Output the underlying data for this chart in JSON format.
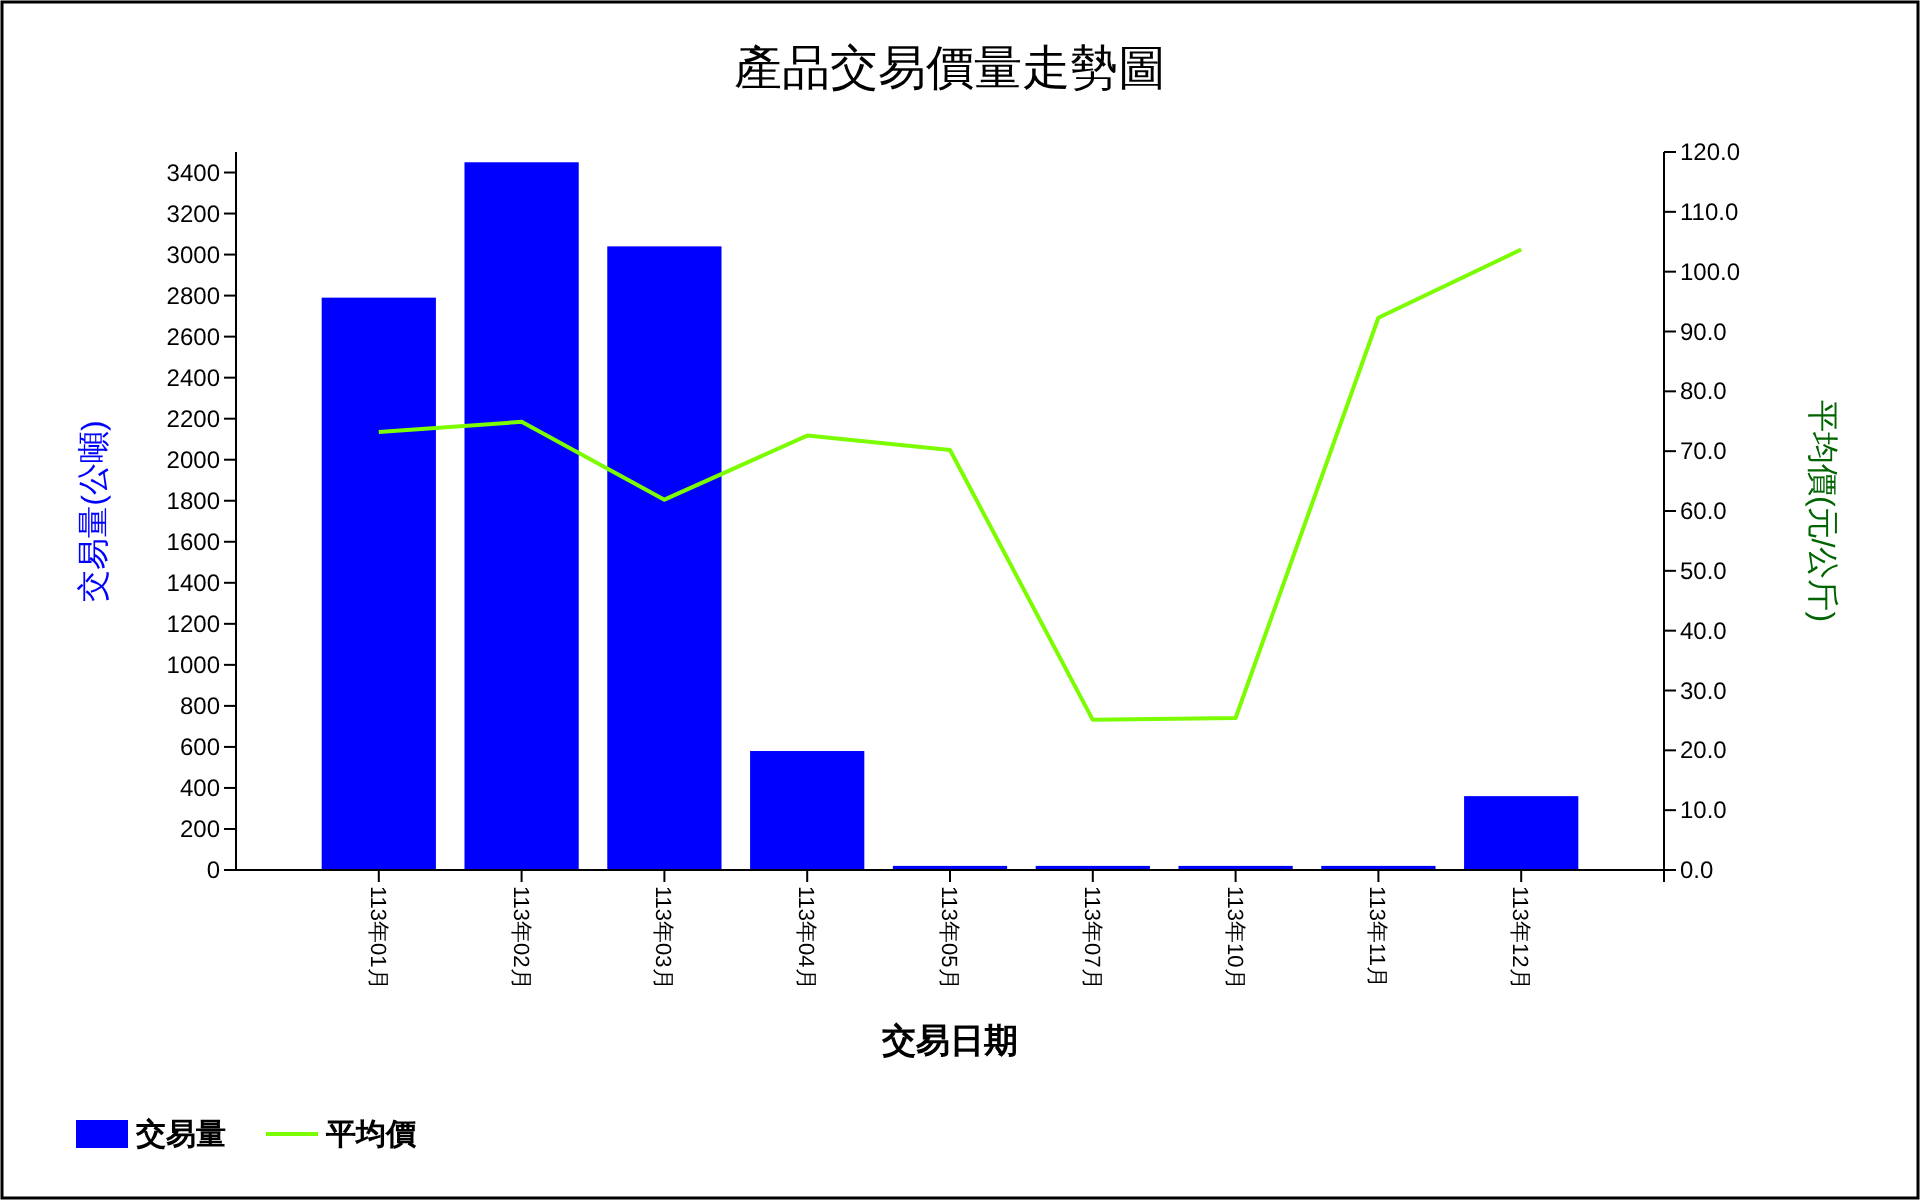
{
  "chart_data": {
    "type": "bar",
    "title": "產品交易價量走勢圖",
    "xlabel": "交易日期",
    "ylabel": "交易量(公噸)",
    "y2label": "平均價(元/公斤)",
    "categories": [
      "113年01月",
      "113年02月",
      "113年03月",
      "113年04月",
      "113年05月",
      "113年07月",
      "113年10月",
      "113年11月",
      "113年12月"
    ],
    "series": [
      {
        "name": "交易量",
        "color": "#0000ff",
        "values": [
          2790,
          3450,
          3040,
          580,
          20,
          20,
          20,
          20,
          360
        ]
      },
      {
        "name": "平均價",
        "type": "line",
        "axis": "y2",
        "color": "#7cfc00",
        "values": [
          73.2,
          74.9,
          61.9,
          72.6,
          70.2,
          25.1,
          25.4,
          92.3,
          103.7
        ]
      }
    ],
    "ylim": [
      0,
      3500
    ],
    "yticks": [
      0,
      200,
      400,
      600,
      800,
      1000,
      1200,
      1400,
      1600,
      1800,
      2000,
      2200,
      2400,
      2600,
      2800,
      3000,
      3200,
      3400
    ],
    "y2lim": [
      0,
      120
    ],
    "y2ticks": [
      {
        "value": 0,
        "label": "0.0"
      },
      {
        "value": 10,
        "label": "10.0"
      },
      {
        "value": 20,
        "label": "20.0"
      },
      {
        "value": 30,
        "label": "30.0"
      },
      {
        "value": 40,
        "label": "40.0"
      },
      {
        "value": 50,
        "label": "50.0"
      },
      {
        "value": 60,
        "label": "60.0"
      },
      {
        "value": 70,
        "label": "70.0"
      },
      {
        "value": 80,
        "label": "80.0"
      },
      {
        "value": 90,
        "label": "90.0"
      },
      {
        "value": 100,
        "label": "100.0"
      },
      {
        "value": 110,
        "label": "110.0"
      },
      {
        "value": 120,
        "label": "120.0"
      }
    ],
    "legend": "bottom left",
    "grid": false
  }
}
